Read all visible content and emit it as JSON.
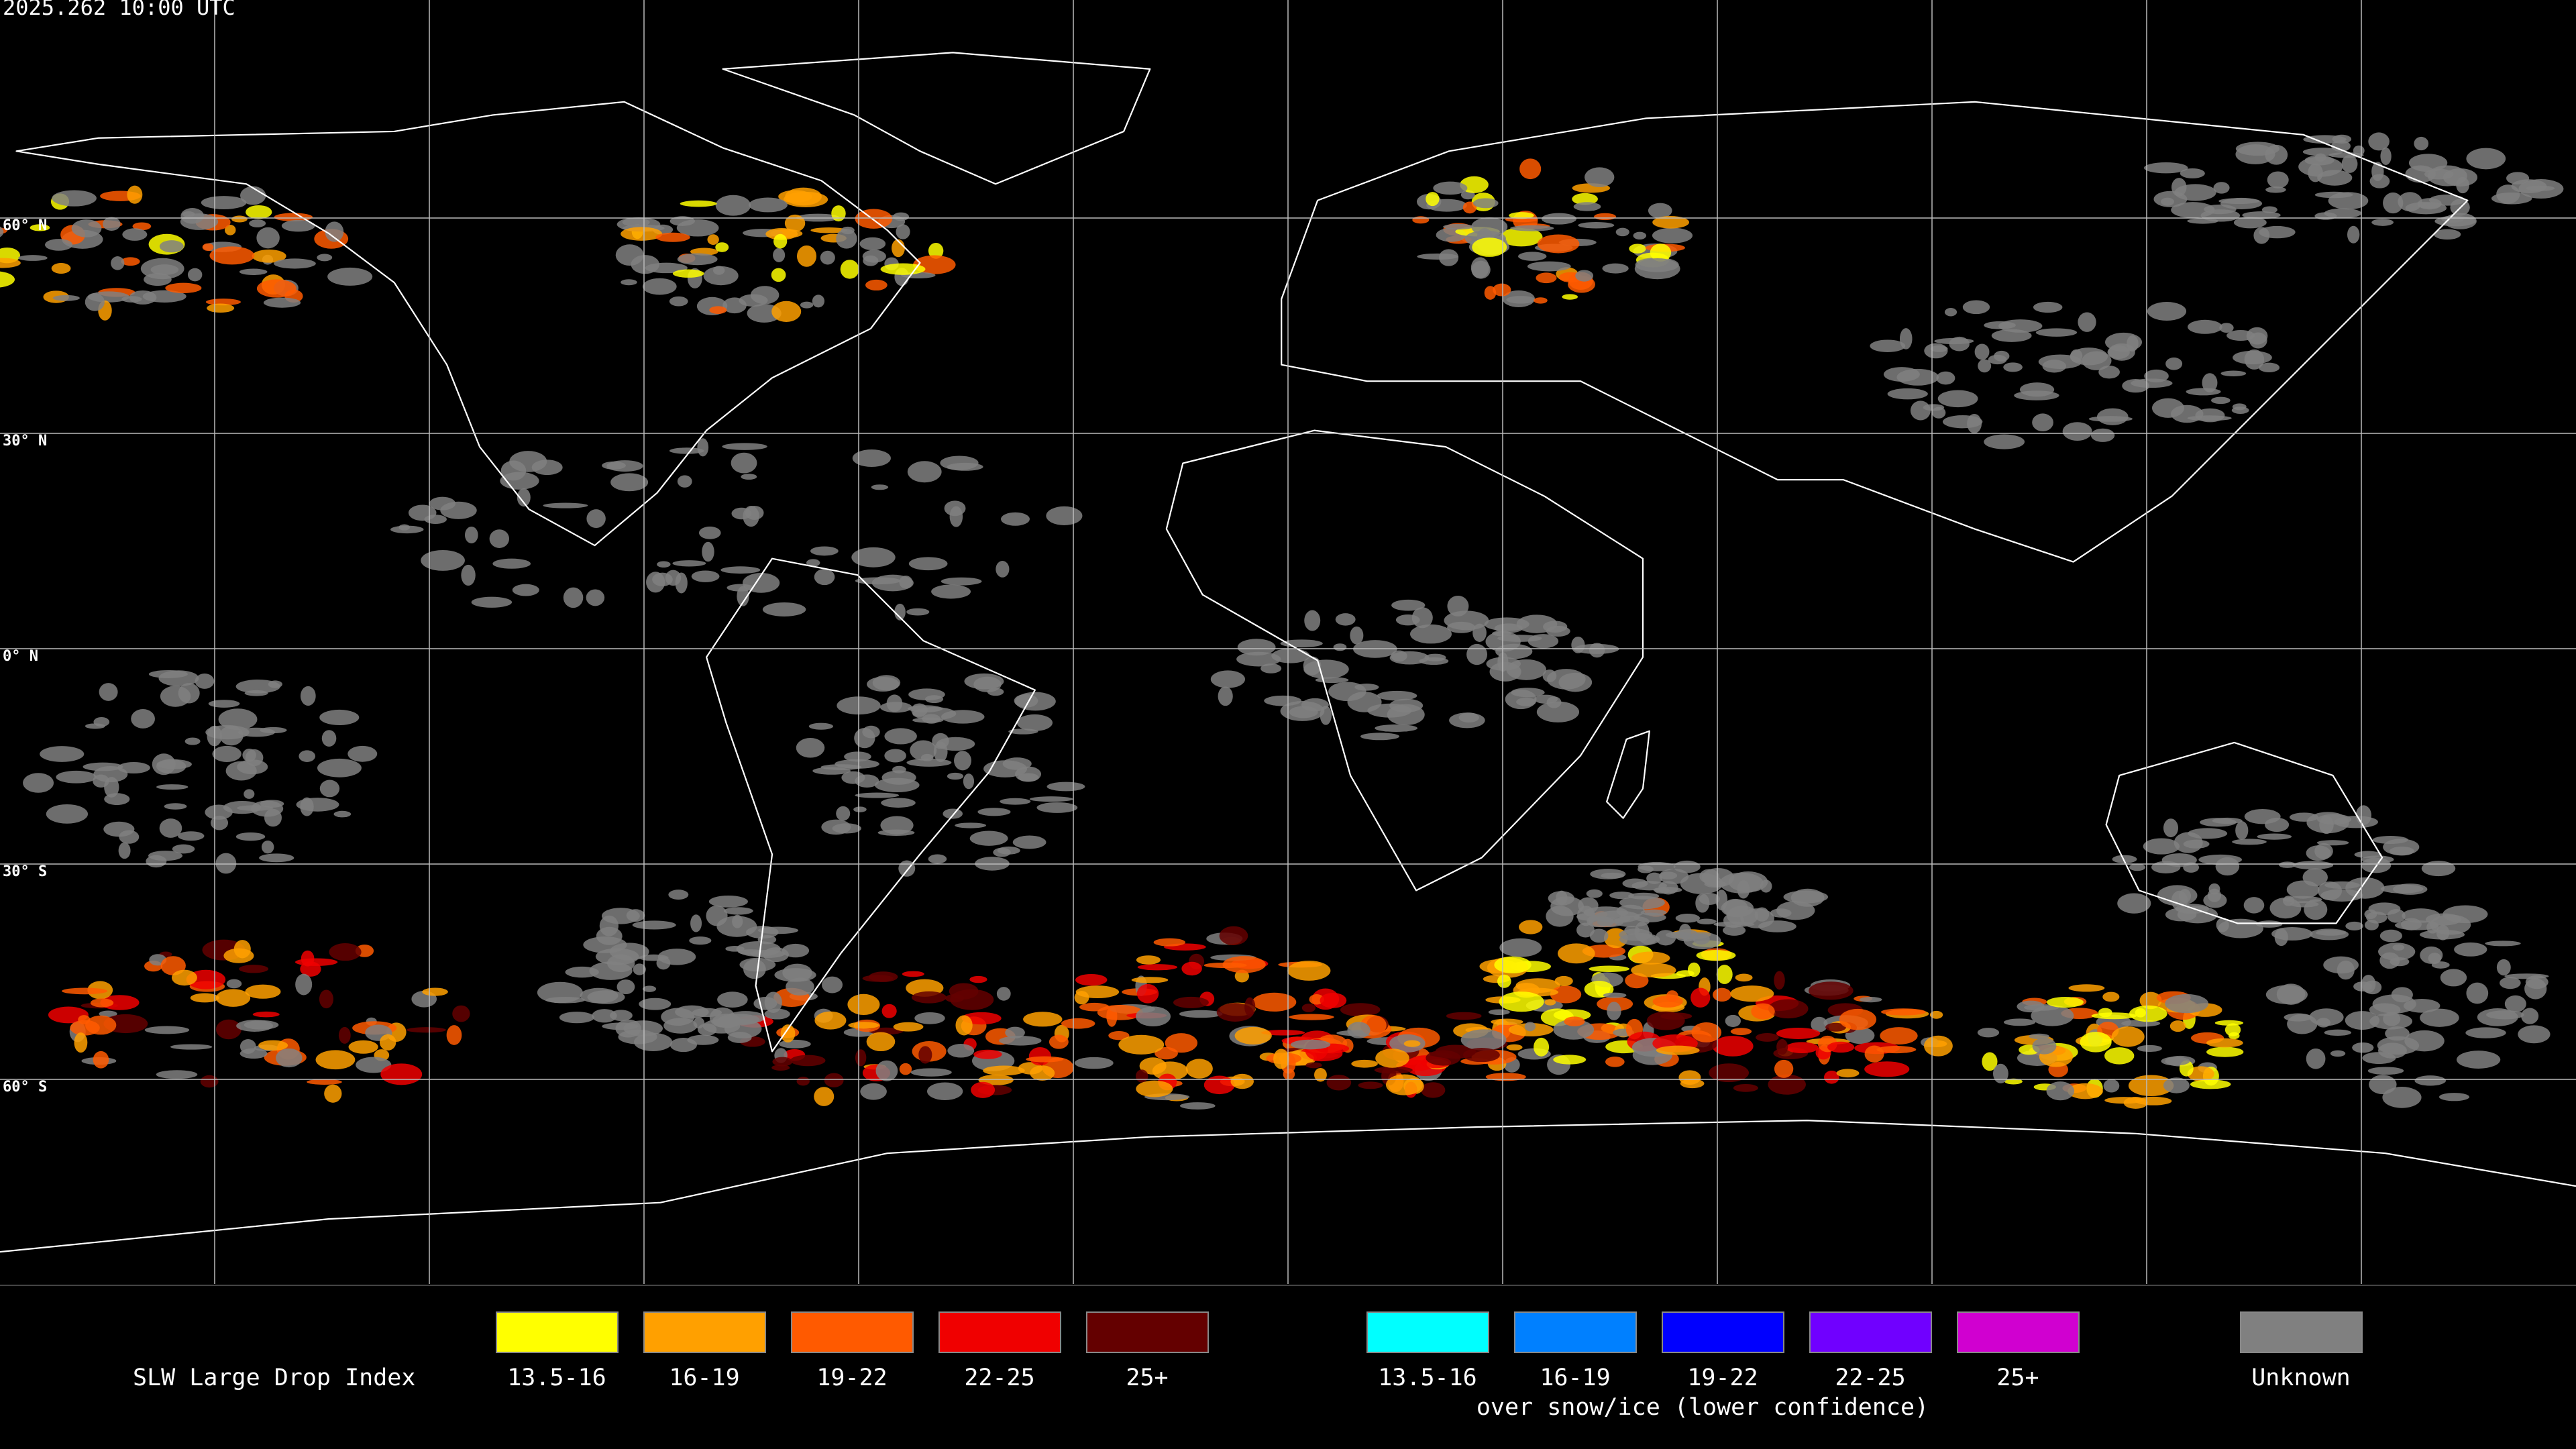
{
  "header": {
    "timestamp": "2025.262 10:00 UTC"
  },
  "map": {
    "lat_labels": [
      "60° N",
      "30° N",
      "0° N",
      "30° S",
      "60° S"
    ]
  },
  "legend": {
    "title": "SLW Large Drop Index",
    "groups": [
      {
        "items": [
          {
            "label": "13.5-16",
            "color": "#ffff00"
          },
          {
            "label": "16-19",
            "color": "#ffa000"
          },
          {
            "label": "19-22",
            "color": "#ff5a00"
          },
          {
            "label": "22-25",
            "color": "#f00000"
          },
          {
            "label": "25+",
            "color": "#640000"
          }
        ]
      },
      {
        "items": [
          {
            "label": "13.5-16",
            "color": "#00ffff"
          },
          {
            "label": "16-19",
            "color": "#0080ff"
          },
          {
            "label": "19-22",
            "color": "#0000ff"
          },
          {
            "label": "22-25",
            "color": "#7000ff"
          },
          {
            "label": "25+",
            "color": "#d000d0"
          }
        ],
        "caption": "over snow/ice (lower confidence)"
      }
    ],
    "unknown": {
      "label": "Unknown",
      "color": "#808080"
    }
  }
}
